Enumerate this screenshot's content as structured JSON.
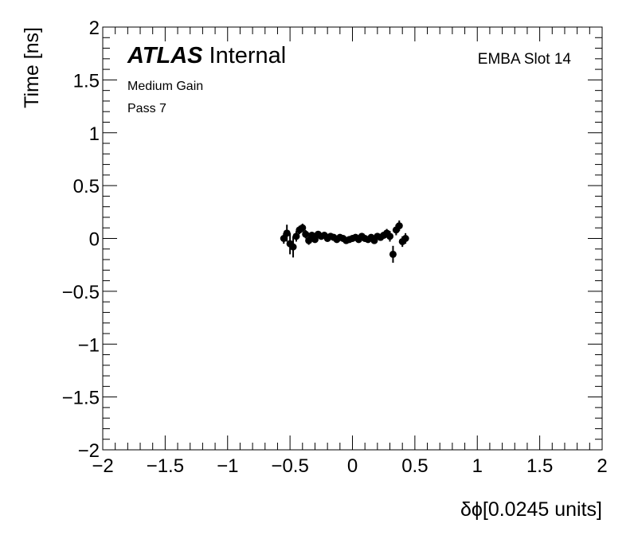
{
  "chart_data": {
    "type": "scatter",
    "title_bold": "ATLAS",
    "title": "Internal",
    "annotations": [
      "Medium Gain",
      "Pass 7"
    ],
    "label_right": "EMBA Slot 14",
    "xlabel": "δϕ[0.0245 units]",
    "ylabel": "Time [ns]",
    "color": "#000000",
    "xlim": [
      -2,
      2
    ],
    "ylim": [
      -2,
      2
    ],
    "xticks": [
      {
        "value": -2,
        "label": "−2"
      },
      {
        "value": -1.5,
        "label": "−1.5"
      },
      {
        "value": -1,
        "label": "−1"
      },
      {
        "value": -0.5,
        "label": "−0.5"
      },
      0,
      0.5,
      1,
      1.5,
      2
    ],
    "yticks": [
      {
        "value": -2,
        "label": "−2"
      },
      {
        "value": -1.5,
        "label": "−1.5"
      },
      {
        "value": -1,
        "label": "−1"
      },
      {
        "value": -0.5,
        "label": "−0.5"
      },
      0,
      0.5,
      1,
      1.5,
      2
    ],
    "x": [
      -0.55,
      -0.525,
      -0.5,
      -0.475,
      -0.45,
      -0.425,
      -0.4,
      -0.375,
      -0.35,
      -0.325,
      -0.3,
      -0.275,
      -0.25,
      -0.225,
      -0.2,
      -0.175,
      -0.15,
      -0.125,
      -0.1,
      -0.075,
      -0.05,
      -0.025,
      0,
      0.025,
      0.05,
      0.075,
      0.1,
      0.125,
      0.15,
      0.175,
      0.2,
      0.225,
      0.25,
      0.275,
      0.3,
      0.325,
      0.35,
      0.375,
      0.4,
      0.425
    ],
    "values": [
      0.0,
      0.05,
      -0.05,
      -0.08,
      0.02,
      0.08,
      0.1,
      0.04,
      -0.02,
      0.03,
      -0.01,
      0.04,
      0.02,
      0.03,
      0.0,
      0.02,
      0.01,
      -0.01,
      0.01,
      0.0,
      -0.02,
      -0.01,
      0.0,
      0.01,
      -0.01,
      0.02,
      0.0,
      -0.01,
      0.01,
      -0.02,
      0.02,
      0.01,
      0.03,
      0.05,
      0.02,
      -0.15,
      0.08,
      0.12,
      -0.03,
      0.0
    ],
    "errors": [
      0.05,
      0.08,
      0.1,
      0.1,
      0.05,
      0.04,
      0.04,
      0.04,
      0.04,
      0.03,
      0.03,
      0.03,
      0.03,
      0.03,
      0.03,
      0.02,
      0.02,
      0.02,
      0.02,
      0.02,
      0.02,
      0.02,
      0.02,
      0.02,
      0.02,
      0.02,
      0.02,
      0.02,
      0.02,
      0.02,
      0.03,
      0.03,
      0.03,
      0.04,
      0.05,
      0.08,
      0.05,
      0.05,
      0.05,
      0.05
    ]
  }
}
